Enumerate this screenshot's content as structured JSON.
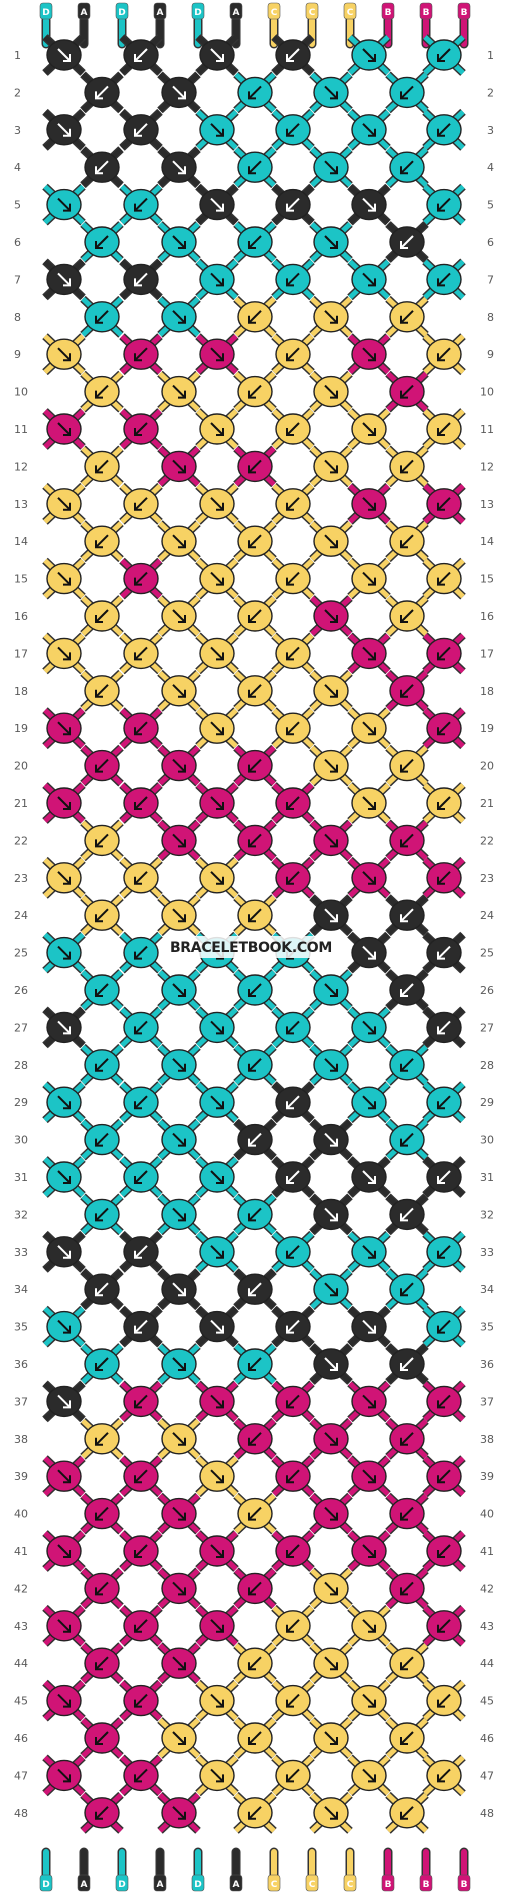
{
  "watermark": "BRACELETBOOK.COM",
  "colors": {
    "D": "#1cc4c6",
    "A": "#2b2b2b",
    "C": "#f7d264",
    "B": "#d01476"
  },
  "strands_top": [
    "D",
    "A",
    "D",
    "A",
    "D",
    "A",
    "C",
    "C",
    "C",
    "B",
    "B",
    "B"
  ],
  "strands_bottom": [
    "D",
    "A",
    "D",
    "A",
    "D",
    "A",
    "C",
    "C",
    "C",
    "B",
    "B",
    "B"
  ],
  "row_count": 48,
  "rows": [
    "A",
    "A",
    "A",
    "A",
    "D",
    "D",
    "A",
    "A",
    "D",
    "D",
    "D",
    "A",
    "A",
    "D",
    "D",
    "D",
    "D",
    "A",
    "A",
    "D",
    "D",
    "D",
    "D",
    "D",
    "A",
    "A",
    "A",
    "D",
    "D",
    "D",
    "D",
    "D",
    "A",
    "A",
    "A",
    "D",
    "D",
    "D",
    "D",
    "D",
    "D",
    "C",
    "C",
    "C",
    "C",
    "B",
    "B",
    "C",
    "B",
    "C",
    "C",
    "C",
    "C",
    "C",
    "B",
    "B",
    "B",
    "C",
    "C",
    "C",
    "C",
    "C",
    "B",
    "B",
    "C",
    "C",
    "C",
    "C",
    "C",
    "C",
    "B",
    "B",
    "C",
    "C",
    "C",
    "C",
    "C",
    "C",
    "B",
    "C",
    "C",
    "C",
    "C",
    "C",
    "C",
    "C",
    "B",
    "C",
    "C",
    "C",
    "C",
    "C",
    "B",
    "B",
    "C",
    "C",
    "C",
    "C",
    "B",
    "B",
    "B",
    "C",
    "C",
    "C",
    "B",
    "B",
    "B",
    "B",
    "C",
    "C",
    "B",
    "B",
    "B",
    "B",
    "C",
    "C",
    "C",
    "B",
    "B",
    "B",
    "B",
    "C",
    "C",
    "C",
    "B",
    "B",
    "B",
    "C",
    "C",
    "C",
    "A",
    "A",
    "D",
    "D",
    "D",
    "D",
    "A",
    "A",
    "D",
    "D",
    "D",
    "D",
    "A",
    "A",
    "D",
    "D",
    "D",
    "D",
    "A",
    "D",
    "D",
    "D",
    "D",
    "D",
    "D",
    "D",
    "D",
    "A",
    "D",
    "D",
    "D",
    "D",
    "A",
    "A",
    "D",
    "D",
    "D",
    "D",
    "A",
    "A",
    "A",
    "D",
    "D",
    "D",
    "A",
    "A",
    "A",
    "A",
    "D",
    "D",
    "D",
    "D",
    "A",
    "A",
    "A",
    "D",
    "D",
    "D",
    "A",
    "A",
    "A",
    "A",
    "D",
    "D",
    "D",
    "D",
    "A",
    "A",
    "A",
    "B",
    "B",
    "B",
    "B",
    "B",
    "C",
    "C",
    "B",
    "B",
    "B",
    "B",
    "B",
    "C",
    "B",
    "B",
    "B",
    "B",
    "B",
    "C",
    "B",
    "B",
    "B",
    "B",
    "B",
    "B",
    "B",
    "B",
    "B",
    "B",
    "B",
    "C",
    "B",
    "B",
    "B",
    "B",
    "C",
    "C",
    "B",
    "B",
    "B",
    "C",
    "C",
    "C",
    "B",
    "B",
    "C",
    "C",
    "C",
    "C",
    "B",
    "C",
    "C",
    "C",
    "C",
    "B",
    "B",
    "C",
    "C",
    "C",
    "C",
    "B",
    "B",
    "C",
    "C",
    "C",
    "C",
    "B",
    "B",
    "D",
    "D",
    "D",
    "A",
    "A",
    "A",
    "D",
    "D",
    "A",
    "A",
    "A",
    "A",
    "D",
    "D",
    "A",
    "A",
    "A",
    "D",
    "A",
    "A",
    "A",
    "A",
    "A",
    "A",
    "A"
  ]
}
